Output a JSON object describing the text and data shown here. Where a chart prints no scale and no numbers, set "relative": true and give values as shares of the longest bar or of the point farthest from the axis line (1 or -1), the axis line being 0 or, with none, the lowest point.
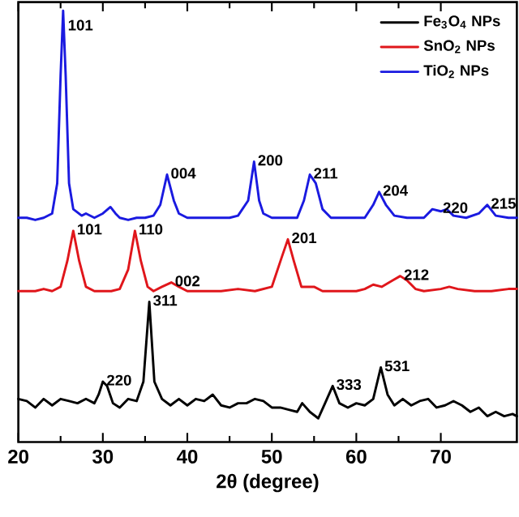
{
  "chart_data": {
    "type": "line",
    "xlabel": "2θ (degree)",
    "relative": true,
    "xlim": [
      20,
      79
    ],
    "xticks": [
      20,
      30,
      40,
      50,
      60,
      70
    ],
    "tick_labels": "x",
    "legend": "top right",
    "series": [
      {
        "name": "Fe$_{3}$O$_{4}$ NPs",
        "color": "#000000",
        "x": [
          20,
          21,
          22,
          23,
          24,
          25,
          26,
          27,
          28,
          29,
          29.5,
          30,
          30.5,
          31.2,
          32,
          33,
          34,
          34.8,
          35.5,
          36.1,
          37,
          38,
          39,
          40,
          41,
          42,
          43,
          44,
          45,
          46,
          47,
          48,
          49,
          50,
          51,
          52,
          53,
          53.6,
          54.5,
          55.5,
          56.3,
          57.2,
          58,
          59,
          60,
          61,
          62,
          62.9,
          63.7,
          64.5,
          65.5,
          66.5,
          67.5,
          68.5,
          69.5,
          70.5,
          71.5,
          72.5,
          73.5,
          74.5,
          75.5,
          76.5,
          77.5,
          78.5,
          79
        ],
        "values": [
          0.1,
          0.095,
          0.08,
          0.1,
          0.085,
          0.1,
          0.095,
          0.09,
          0.1,
          0.09,
          0.11,
          0.14,
          0.13,
          0.09,
          0.08,
          0.1,
          0.095,
          0.14,
          0.325,
          0.14,
          0.1,
          0.085,
          0.1,
          0.085,
          0.1,
          0.095,
          0.11,
          0.085,
          0.08,
          0.09,
          0.09,
          0.1,
          0.095,
          0.08,
          0.08,
          0.075,
          0.07,
          0.09,
          0.07,
          0.055,
          0.09,
          0.13,
          0.09,
          0.08,
          0.09,
          0.085,
          0.1,
          0.173,
          0.11,
          0.085,
          0.1,
          0.085,
          0.095,
          0.1,
          0.08,
          0.085,
          0.095,
          0.085,
          0.07,
          0.08,
          0.06,
          0.07,
          0.06,
          0.065,
          0.06
        ]
      },
      {
        "name": "SnO$_{2}$ NPs",
        "color": "#e0161b",
        "x": [
          20,
          22,
          23,
          24,
          25,
          25.8,
          26.5,
          27.2,
          28,
          29,
          30,
          31,
          32,
          33,
          33.8,
          34.5,
          35.3,
          36,
          37,
          38.1,
          39,
          40,
          42,
          44,
          46,
          48,
          50,
          51.2,
          51.9,
          52.6,
          53.5,
          55,
          56,
          58,
          60,
          61,
          62,
          63,
          64.3,
          65.2,
          66,
          67,
          68,
          70,
          71,
          72,
          74,
          76,
          78,
          79
        ],
        "values": [
          0.35,
          0.35,
          0.355,
          0.35,
          0.36,
          0.42,
          0.49,
          0.42,
          0.36,
          0.35,
          0.35,
          0.35,
          0.355,
          0.4,
          0.49,
          0.42,
          0.36,
          0.35,
          0.36,
          0.37,
          0.36,
          0.35,
          0.35,
          0.35,
          0.355,
          0.35,
          0.36,
          0.43,
          0.47,
          0.42,
          0.36,
          0.36,
          0.35,
          0.35,
          0.35,
          0.355,
          0.365,
          0.36,
          0.375,
          0.385,
          0.375,
          0.355,
          0.35,
          0.355,
          0.36,
          0.355,
          0.35,
          0.35,
          0.355,
          0.355
        ]
      },
      {
        "name": "TiO$_{2}$ NPs",
        "color": "#1a1ae0",
        "x": [
          20,
          21,
          22,
          23,
          24,
          24.6,
          25,
          25.3,
          25.6,
          26,
          26.5,
          27.5,
          28,
          29,
          30,
          30.9,
          31.5,
          32,
          33,
          34,
          35,
          36,
          36.8,
          37.6,
          38.4,
          39,
          40,
          41,
          42,
          43,
          44,
          45,
          46,
          47.2,
          47.9,
          48.5,
          49,
          50,
          51,
          52,
          53,
          53.8,
          54.5,
          55.2,
          56,
          57,
          58,
          59,
          60,
          61,
          62,
          62.7,
          63.5,
          64.5,
          66,
          67,
          68,
          69,
          70,
          70.7,
          71.5,
          73,
          74.5,
          75.5,
          76.5,
          78,
          79
        ],
        "values": [
          0.52,
          0.52,
          0.515,
          0.52,
          0.53,
          0.6,
          0.85,
          1.0,
          0.85,
          0.6,
          0.54,
          0.525,
          0.53,
          0.52,
          0.53,
          0.545,
          0.53,
          0.52,
          0.515,
          0.52,
          0.52,
          0.525,
          0.55,
          0.62,
          0.56,
          0.53,
          0.52,
          0.52,
          0.52,
          0.52,
          0.52,
          0.52,
          0.525,
          0.56,
          0.65,
          0.56,
          0.53,
          0.52,
          0.52,
          0.52,
          0.52,
          0.56,
          0.62,
          0.6,
          0.54,
          0.52,
          0.52,
          0.52,
          0.52,
          0.52,
          0.55,
          0.58,
          0.55,
          0.525,
          0.52,
          0.52,
          0.52,
          0.54,
          0.535,
          0.54,
          0.525,
          0.52,
          0.53,
          0.55,
          0.525,
          0.52,
          0.52
        ]
      }
    ],
    "annotations": [
      {
        "text": "101",
        "x": 25.3,
        "y": 1.0
      },
      {
        "text": "004",
        "x": 37.6,
        "y": 0.62
      },
      {
        "text": "200",
        "x": 47.9,
        "y": 0.65
      },
      {
        "text": "211",
        "x": 54.5,
        "y": 0.62
      },
      {
        "text": "204",
        "x": 62.7,
        "y": 0.58
      },
      {
        "text": "220",
        "x": 69.8,
        "y": 0.54
      },
      {
        "text": "215",
        "x": 75.5,
        "y": 0.55
      },
      {
        "text": "101",
        "x": 26.5,
        "y": 0.49
      },
      {
        "text": "110",
        "x": 33.8,
        "y": 0.49
      },
      {
        "text": "002",
        "x": 38.1,
        "y": 0.37
      },
      {
        "text": "201",
        "x": 51.9,
        "y": 0.47
      },
      {
        "text": "212",
        "x": 65.2,
        "y": 0.385
      },
      {
        "text": "311",
        "x": 35.5,
        "y": 0.325
      },
      {
        "text": "220",
        "x": 30.0,
        "y": 0.14
      },
      {
        "text": "333",
        "x": 57.2,
        "y": 0.13
      },
      {
        "text": "531",
        "x": 62.9,
        "y": 0.173
      }
    ]
  }
}
